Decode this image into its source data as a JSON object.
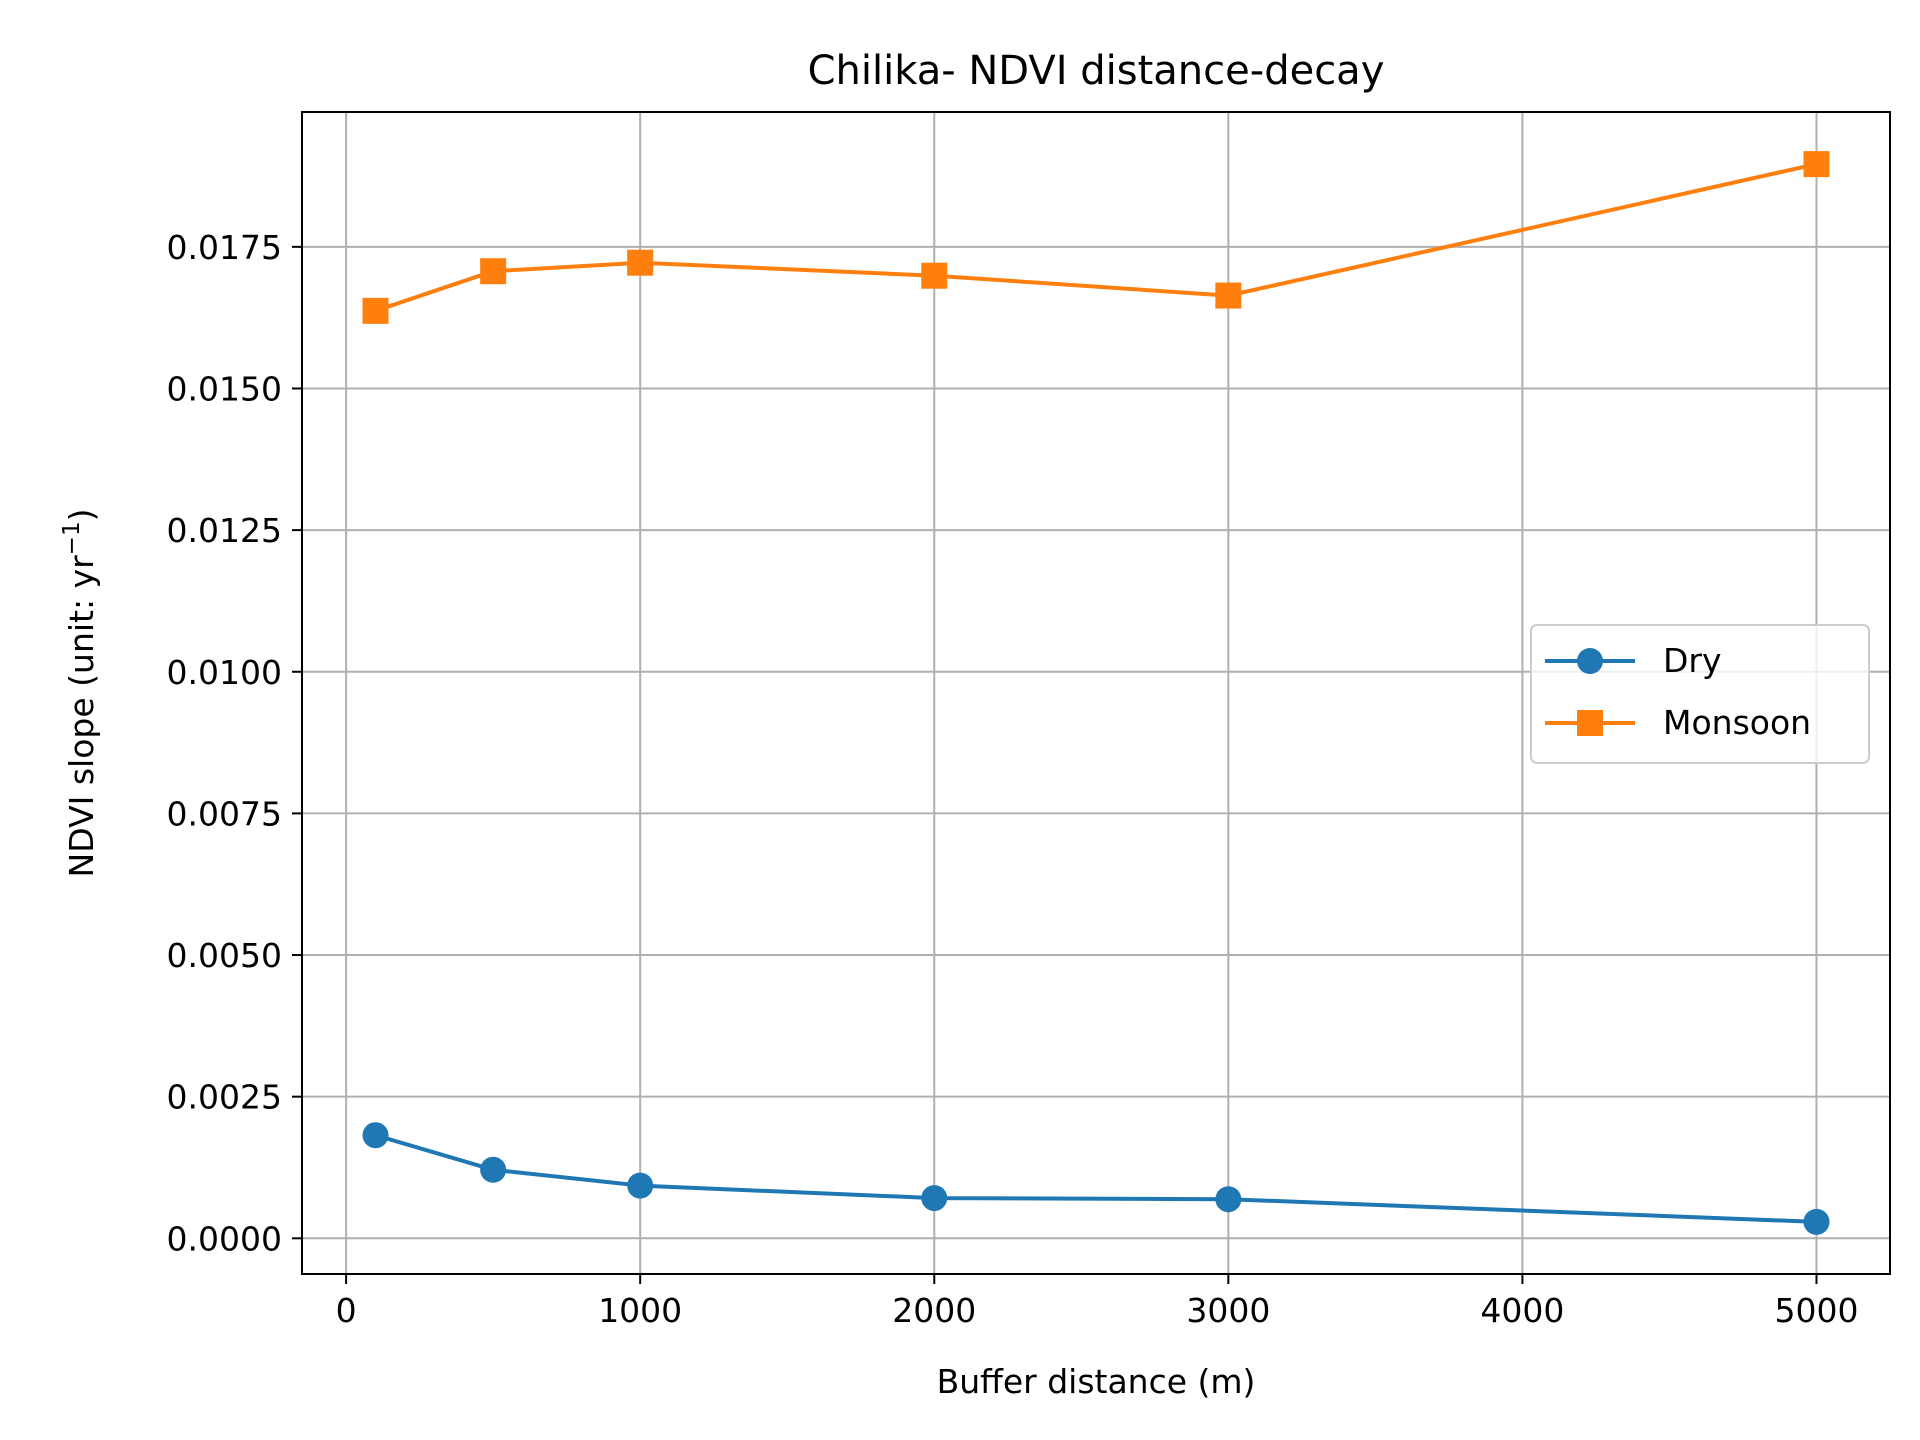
{
  "chart_data": {
    "type": "line",
    "title": "Chilika- NDVI distance-decay",
    "xlabel": "Buffer distance (m)",
    "ylabel": "NDVI slope (unit: yr",
    "ylabel_superscript": "−1",
    "ylabel_suffix": ")",
    "xlim": [
      -150,
      5250
    ],
    "ylim": [
      -0.00063,
      0.01988
    ],
    "x_ticks": [
      0,
      1000,
      2000,
      3000,
      4000,
      5000
    ],
    "x_tick_labels": [
      "0",
      "1000",
      "2000",
      "3000",
      "4000",
      "5000"
    ],
    "y_ticks": [
      0.0,
      0.0025,
      0.005,
      0.0075,
      0.01,
      0.0125,
      0.015,
      0.0175
    ],
    "y_tick_labels": [
      "0.0000",
      "0.0025",
      "0.0050",
      "0.0075",
      "0.0100",
      "0.0125",
      "0.0150",
      "0.0175"
    ],
    "grid": true,
    "legend_position": "center-right",
    "x": [
      100,
      500,
      1000,
      2000,
      3000,
      5000
    ],
    "series": [
      {
        "name": "Dry",
        "marker": "circle",
        "color": "#1f77b4",
        "values": [
          0.00182,
          0.00121,
          0.00093,
          0.00071,
          0.00069,
          0.00029
        ]
      },
      {
        "name": "Monsoon",
        "marker": "square",
        "color": "#ff7f0e",
        "values": [
          0.01637,
          0.01707,
          0.01722,
          0.01699,
          0.01664,
          0.01896
        ]
      }
    ]
  }
}
